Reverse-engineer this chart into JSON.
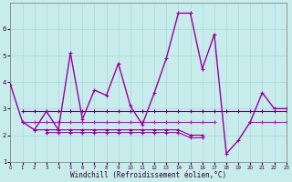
{
  "xlabel": "Windchill (Refroidissement éolien,°C)",
  "background_color": "#c8ecec",
  "grid_color": "#a8d8d8",
  "xlim": [
    0,
    23
  ],
  "ylim": [
    1,
    7
  ],
  "yticks": [
    1,
    2,
    3,
    4,
    5,
    6
  ],
  "xticks": [
    0,
    1,
    2,
    3,
    4,
    5,
    6,
    7,
    8,
    9,
    10,
    11,
    12,
    13,
    14,
    15,
    16,
    17,
    18,
    19,
    20,
    21,
    22,
    23
  ],
  "y_main": [
    3.9,
    2.5,
    2.2,
    2.9,
    2.2,
    5.1,
    2.6,
    3.7,
    3.5,
    4.7,
    3.1,
    2.4,
    3.6,
    4.9,
    6.6,
    6.6,
    4.5,
    5.8,
    1.3,
    1.8,
    2.5,
    3.6,
    3.0,
    3.0
  ],
  "y_flat1": [
    null,
    2.9,
    2.9,
    2.9,
    2.9,
    2.9,
    2.9,
    2.9,
    2.9,
    2.9,
    2.9,
    2.9,
    2.9,
    2.9,
    2.9,
    2.9,
    2.9,
    2.9,
    2.9,
    2.9,
    2.9,
    2.9,
    2.9,
    2.9
  ],
  "y_flat2": [
    null,
    2.5,
    2.5,
    2.5,
    2.5,
    2.5,
    2.5,
    2.5,
    2.5,
    2.5,
    2.5,
    2.5,
    2.5,
    2.5,
    2.5,
    2.5,
    2.5,
    2.5,
    null,
    null,
    2.5,
    2.5,
    2.5,
    2.5
  ],
  "y_flat3": [
    null,
    null,
    2.2,
    2.2,
    2.2,
    2.2,
    2.2,
    2.2,
    2.2,
    2.2,
    2.2,
    2.2,
    2.2,
    2.2,
    2.2,
    2.0,
    2.0,
    null,
    null,
    null,
    null,
    null,
    null,
    null
  ],
  "y_flat4": [
    null,
    null,
    null,
    2.1,
    2.1,
    2.1,
    2.1,
    2.1,
    2.1,
    2.1,
    2.1,
    2.1,
    2.1,
    2.1,
    2.1,
    1.9,
    1.9,
    null,
    null,
    null,
    null,
    null,
    null,
    null
  ],
  "color_main": "#990099",
  "color_flat1": "#660066",
  "color_flat2": "#cc00cc",
  "color_flat3": "#880088",
  "color_flat4": "#aa00aa"
}
